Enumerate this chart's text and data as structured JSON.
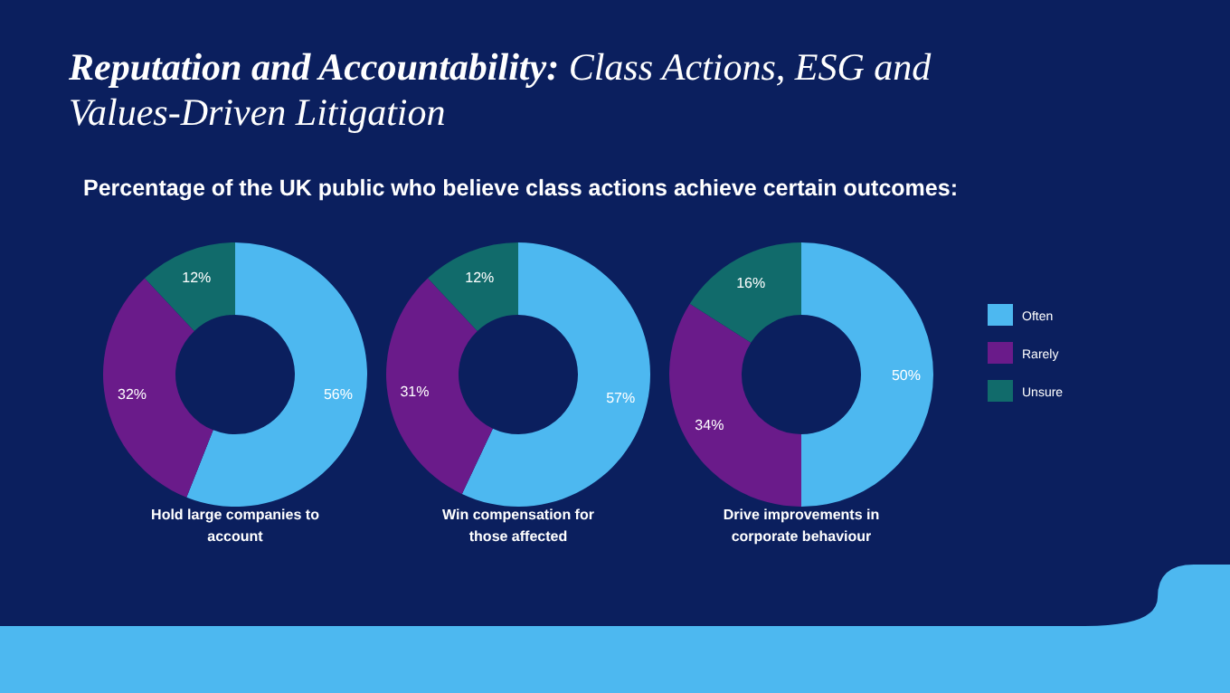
{
  "chart_data": [
    {
      "type": "donut",
      "title": "Reputation and Accountability: Class Actions, ESG and Values-Driven Litigation",
      "subtitle": "Percentage of the UK public who believe class actions achieve certain outcomes:",
      "xlabel": "Hold large companies to account",
      "values": [
        56,
        32,
        12
      ],
      "value_labels": [
        "56%",
        "32%",
        "12%"
      ],
      "colors": [
        "#4db8f0",
        "#6a1b8a",
        "#116b6b"
      ]
    },
    {
      "type": "donut",
      "xlabel": "Win compensation for those affected",
      "values": [
        57,
        31,
        12
      ],
      "value_labels": [
        "57%",
        "31%",
        "12%"
      ],
      "colors": [
        "#4db8f0",
        "#6a1b8a",
        "#116b6b"
      ]
    },
    {
      "type": "donut",
      "xlabel": "Drive improvements in corporate behaviour",
      "categories": [
        "Often",
        "Rarely",
        "Unsure"
      ],
      "values": [
        50,
        34,
        16
      ],
      "value_labels": [
        "50%",
        "34%",
        "16%"
      ],
      "colors": [
        "#4db8f0",
        "#6a1b8a",
        "#116b6b"
      ],
      "legend": "right"
    }
  ]
}
